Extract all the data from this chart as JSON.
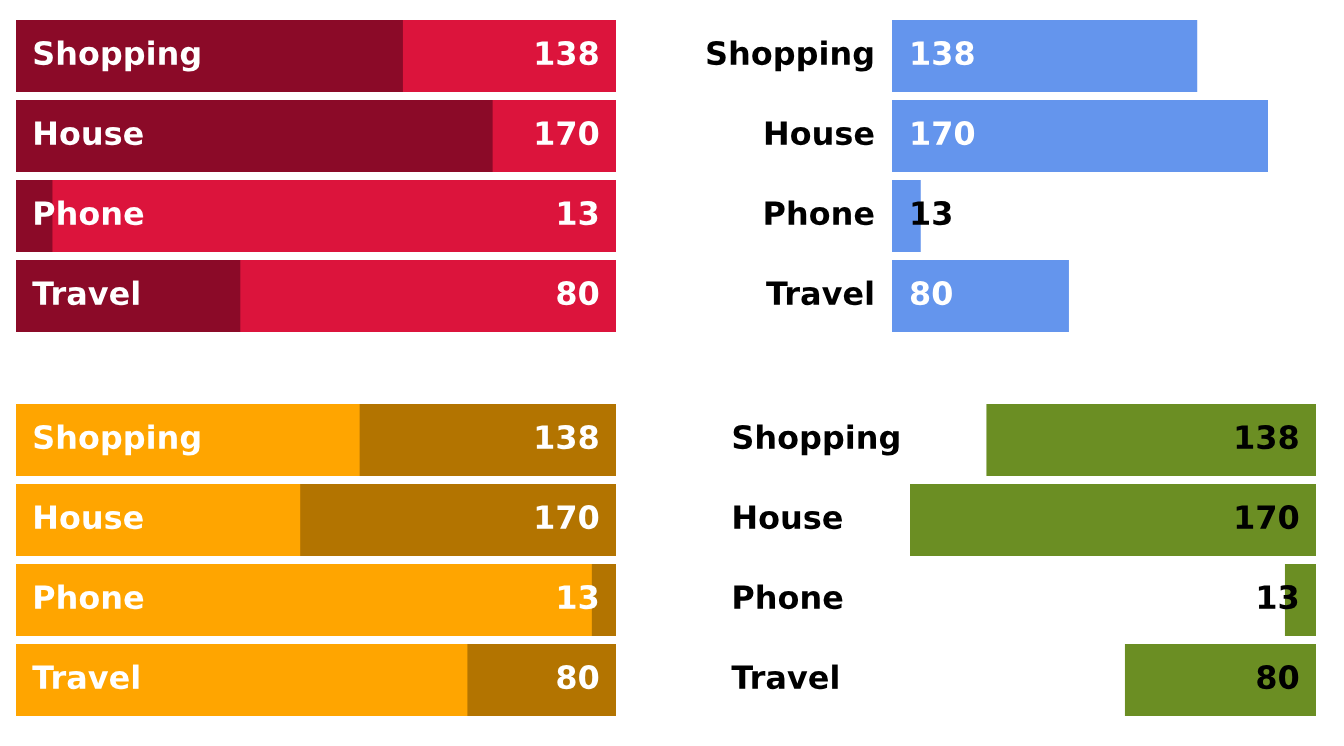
{
  "chart_data": [
    {
      "type": "bar",
      "orientation": "horizontal",
      "categories": [
        "Shopping",
        "House",
        "Phone",
        "Travel"
      ],
      "values": [
        138,
        170,
        13,
        80
      ],
      "color": "#8b0a28",
      "data_labels": true,
      "xlim": [
        0,
        214
      ],
      "bands": [
        {
          "axis": "x",
          "from": 0,
          "to": 214,
          "color": "#dc143c"
        }
      ]
    },
    {
      "type": "bar",
      "orientation": "horizontal",
      "categories": [
        "Shopping",
        "House",
        "Phone",
        "Travel"
      ],
      "values": [
        138,
        170,
        13,
        80
      ],
      "color": "#6495ed",
      "data_labels": true
    },
    {
      "type": "bar",
      "orientation": "horizontal",
      "categories": [
        "Shopping",
        "House",
        "Phone",
        "Travel"
      ],
      "values": [
        138,
        170,
        13,
        80
      ],
      "color": "#b37400",
      "data_labels": true,
      "xlim": [
        323,
        0
      ],
      "bands": [
        {
          "axis": "x",
          "from": 0,
          "to": 323,
          "color": "#ffa500"
        }
      ]
    },
    {
      "type": "bar",
      "orientation": "horizontal",
      "categories": [
        "Shopping",
        "House",
        "Phone",
        "Travel"
      ],
      "values": [
        138,
        170,
        13,
        80
      ],
      "color": "#6b8e23",
      "data_labels": true
    }
  ]
}
